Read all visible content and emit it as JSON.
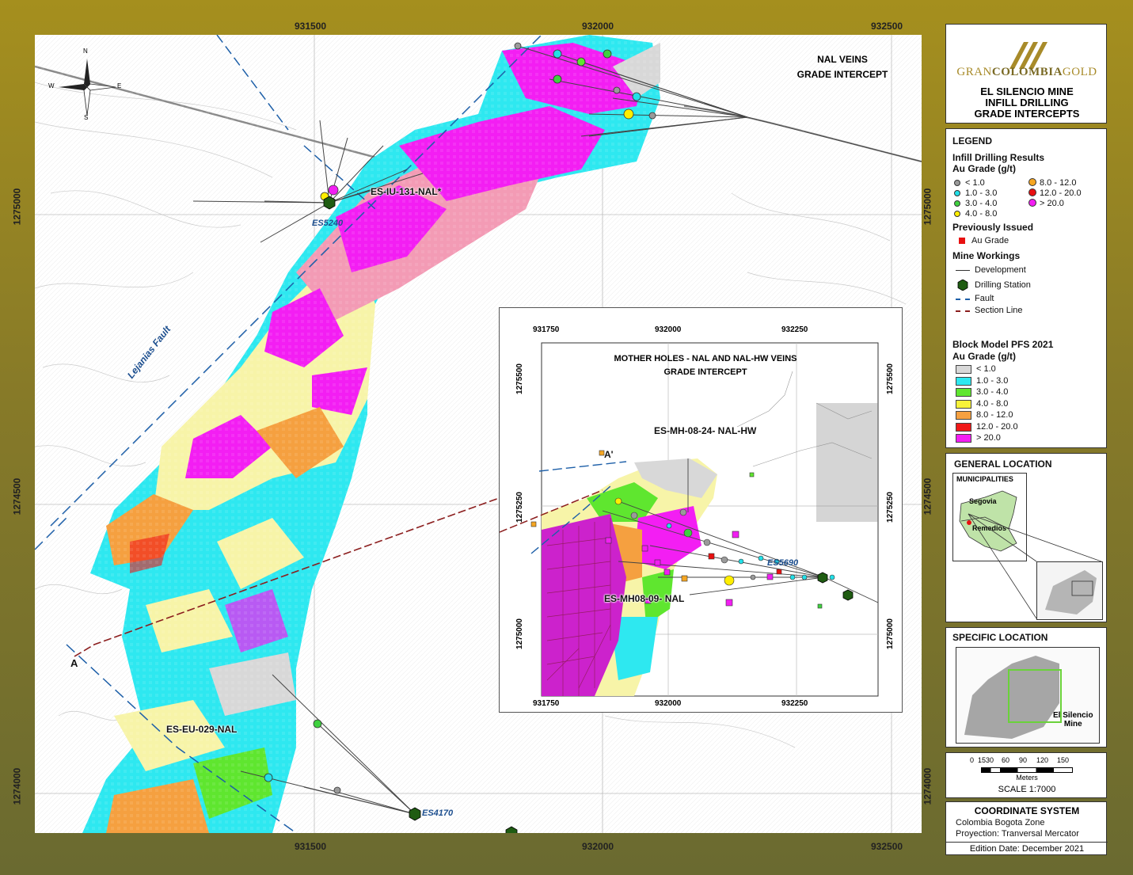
{
  "coords": {
    "x_top": [
      "931500",
      "932000",
      "932500"
    ],
    "x_bottom": [
      "931500",
      "932000",
      "932500"
    ],
    "y_left": [
      "1275000",
      "1274500",
      "1274000"
    ],
    "y_right": [
      "1275000",
      "1274500",
      "1274000"
    ]
  },
  "map": {
    "title_line1": "NAL VEINS",
    "title_line2": "GRADE INTERCEPT",
    "fault_label": "Lejanias Fault",
    "holes": [
      "ES-IU-131-NAL*",
      "ES-EU-029-NAL"
    ],
    "stations": [
      "ES5240",
      "ES4170"
    ],
    "section_a": "A",
    "compass": {
      "n": "N",
      "e": "E",
      "s": "S",
      "w": "W"
    }
  },
  "inset": {
    "title_line1": "MOTHER HOLES - NAL AND NAL-HW VEINS",
    "title_line2": "GRADE INTERCEPT",
    "x_ticks": [
      "931750",
      "932000",
      "932250"
    ],
    "y_ticks": [
      "1275500",
      "1275250",
      "1275000"
    ],
    "hole_1": "ES-MH-08-24- NAL-HW",
    "hole_2": "ES-MH08-09- NAL",
    "station": "ES5690",
    "section_a_prime": "A'"
  },
  "title_block": {
    "logo_gran": "GRAN",
    "logo_colombia": "COLOMBIA",
    "logo_gold": "GOLD",
    "line1": "EL SILENCIO MINE",
    "line2": "INFILL DRILLING",
    "line3": "GRADE INTERCEPTS"
  },
  "legend": {
    "title": "LEGEND",
    "infill_title": "Infill Drilling Results",
    "au_grade_title": "Au Grade (g/t)",
    "infill_items": [
      {
        "label": "< 1.0",
        "color": "#9a9a9a"
      },
      {
        "label": "1.0 - 3.0",
        "color": "#22e0e8"
      },
      {
        "label": "3.0 - 4.0",
        "color": "#3fd13f"
      },
      {
        "label": "4.0 - 8.0",
        "color": "#ffee00"
      },
      {
        "label": "8.0 - 12.0",
        "color": "#f5a623"
      },
      {
        "label": "12.0 - 20.0",
        "color": "#e81010"
      },
      {
        "label": "> 20.0",
        "color": "#f21ef2"
      }
    ],
    "prev_title": "Previously Issued",
    "prev_item": "Au Grade",
    "mine_title": "Mine Workings",
    "development": "Development",
    "drilling_station": "Drilling Station",
    "fault": "Fault",
    "section_line": "Section Line",
    "block_title": "Block Model PFS 2021",
    "block_sub": "Au Grade (g/t)",
    "block_items": [
      {
        "label": "< 1.0",
        "color": "#d8d8d8"
      },
      {
        "label": "1.0 - 3.0",
        "color": "#2ee8f0"
      },
      {
        "label": "3.0 - 4.0",
        "color": "#5fe62f"
      },
      {
        "label": "4.0 - 8.0",
        "color": "#f7f23a"
      },
      {
        "label": "8.0 - 12.0",
        "color": "#f5a040"
      },
      {
        "label": "12.0 - 20.0",
        "color": "#f01818"
      },
      {
        "label": "> 20.0",
        "color": "#f31ef3"
      }
    ]
  },
  "general_location": {
    "title": "GENERAL LOCATION",
    "sub": "MUNICIPALITIES",
    "segovia": "Segovia",
    "remedios": "Remedios"
  },
  "specific_location": {
    "title": "SPECIFIC LOCATION",
    "place_line1": "El Silencio",
    "place_line2": "Mine"
  },
  "scale": {
    "ticks": [
      "0",
      "15",
      "30",
      "60",
      "90",
      "120",
      "150"
    ],
    "unit": "Meters",
    "label": "SCALE 1:7000"
  },
  "coordinate_system": {
    "title": "COORDINATE SYSTEM",
    "line1": "Colombia Bogota Zone",
    "line2": "Proyection: Tranversal Mercator"
  },
  "edition": "Edition Date: December 2021"
}
